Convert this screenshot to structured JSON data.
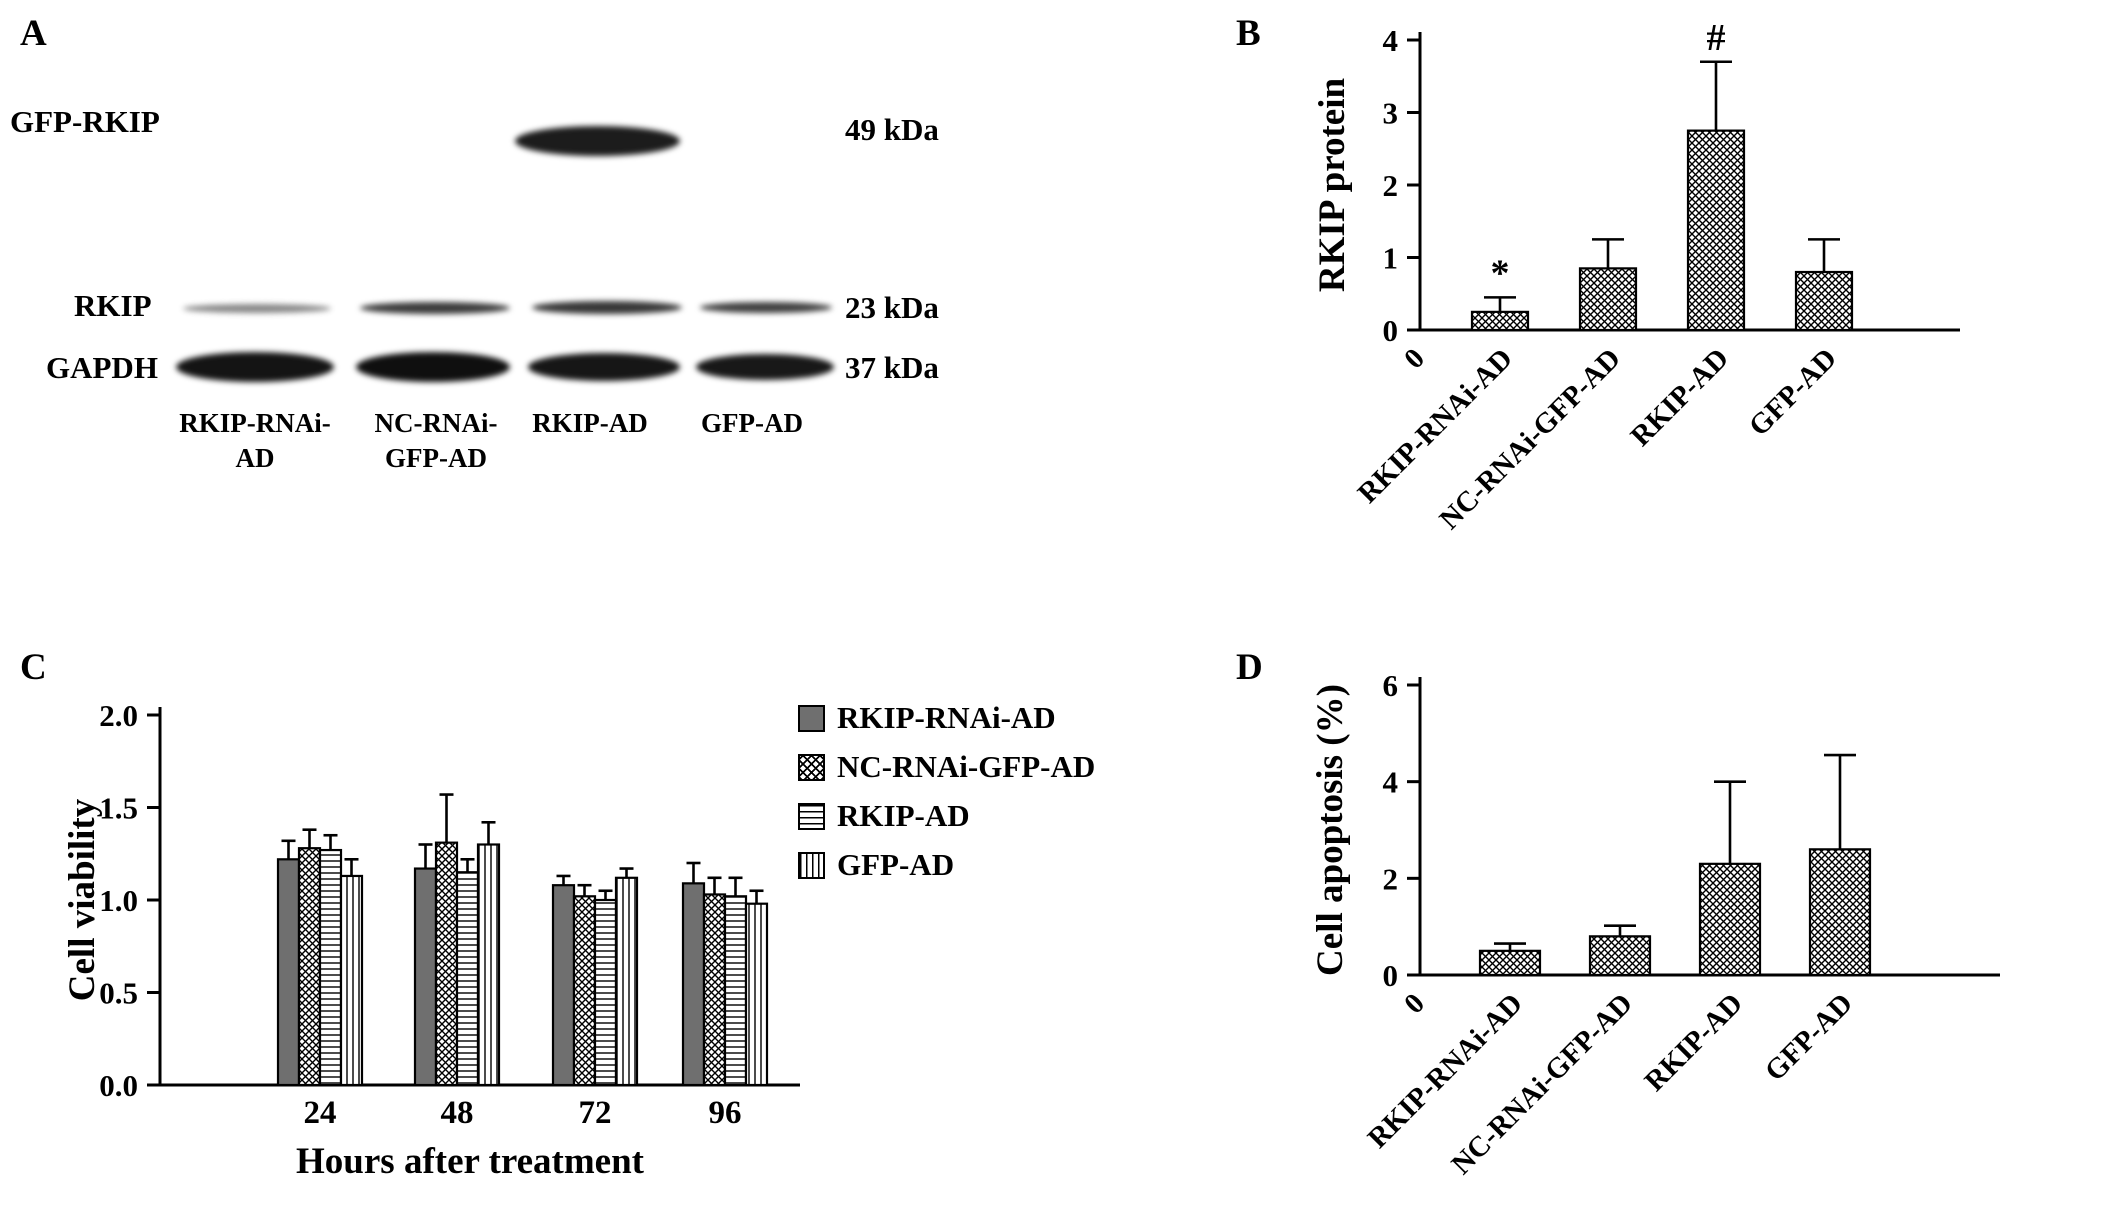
{
  "figure": {
    "background": "#ffffff"
  },
  "panels": {
    "a": {
      "label": "A",
      "rows": [
        {
          "protein": "GFP-RKIP",
          "weight": "49 kDa"
        },
        {
          "protein": "RKIP",
          "weight": "23 kDa"
        },
        {
          "protein": "GAPDH",
          "weight": "37 kDa"
        }
      ],
      "lanes": [
        {
          "line1": "RKIP-RNAi-",
          "line2": "AD"
        },
        {
          "line1": "NC-RNAi-",
          "line2": "GFP-AD"
        },
        {
          "line1": "RKIP-AD",
          "line2": ""
        },
        {
          "line1": "GFP-AD",
          "line2": ""
        }
      ]
    },
    "b": {
      "label": "B"
    },
    "c": {
      "label": "C"
    },
    "d": {
      "label": "D"
    }
  },
  "chart_data": [
    {
      "panel": "B",
      "type": "bar",
      "ylabel": "RKIP protein",
      "ylim": [
        0,
        4
      ],
      "yticks": [
        "0",
        "1",
        "2",
        "3",
        "4"
      ],
      "categories": [
        "RKIP-RNAi-AD",
        "NC-RNAi-GFP-AD",
        "RKIP-AD",
        "GFP-AD"
      ],
      "values": [
        0.25,
        0.85,
        2.75,
        0.8
      ],
      "errors": [
        0.2,
        0.4,
        0.95,
        0.45
      ],
      "annotations": [
        {
          "bar": 0,
          "text": "*"
        },
        {
          "bar": 2,
          "text": "#"
        }
      ],
      "origin_label": "0",
      "bar_style": "crosshatch",
      "grid": false
    },
    {
      "panel": "C",
      "type": "bar",
      "grouped": true,
      "xlabel": "Hours after treatment",
      "ylabel": "Cell viability",
      "ylim": [
        0,
        2
      ],
      "yticks": [
        "0.0",
        "0.5",
        "1.0",
        "1.5",
        "2.0"
      ],
      "categories": [
        "24",
        "48",
        "72",
        "96"
      ],
      "series": [
        {
          "name": "RKIP-RNAi-AD",
          "style": "solid-gray",
          "values": [
            1.22,
            1.17,
            1.08,
            1.09
          ],
          "errors": [
            0.1,
            0.13,
            0.05,
            0.11
          ]
        },
        {
          "name": "NC-RNAi-GFP-AD",
          "style": "crosshatch",
          "values": [
            1.28,
            1.31,
            1.02,
            1.03
          ],
          "errors": [
            0.1,
            0.26,
            0.06,
            0.09
          ]
        },
        {
          "name": "RKIP-AD",
          "style": "horizontal-lines",
          "values": [
            1.27,
            1.15,
            1.0,
            1.02
          ],
          "errors": [
            0.08,
            0.07,
            0.05,
            0.1
          ]
        },
        {
          "name": "GFP-AD",
          "style": "vertical-lines",
          "values": [
            1.13,
            1.3,
            1.12,
            0.98
          ],
          "errors": [
            0.09,
            0.12,
            0.05,
            0.07
          ]
        }
      ],
      "legend_position": "top-right",
      "grid": false
    },
    {
      "panel": "D",
      "type": "bar",
      "ylabel": "Cell apoptosis (%)",
      "ylim": [
        0,
        6
      ],
      "yticks": [
        "0",
        "2",
        "4",
        "6"
      ],
      "categories": [
        "RKIP-RNAi-AD",
        "NC-RNAi-GFP-AD",
        "RKIP-AD",
        "GFP-AD"
      ],
      "values": [
        0.5,
        0.8,
        2.3,
        2.6
      ],
      "errors": [
        0.15,
        0.22,
        1.7,
        1.95
      ],
      "origin_label": "0",
      "bar_style": "crosshatch",
      "grid": false
    }
  ]
}
